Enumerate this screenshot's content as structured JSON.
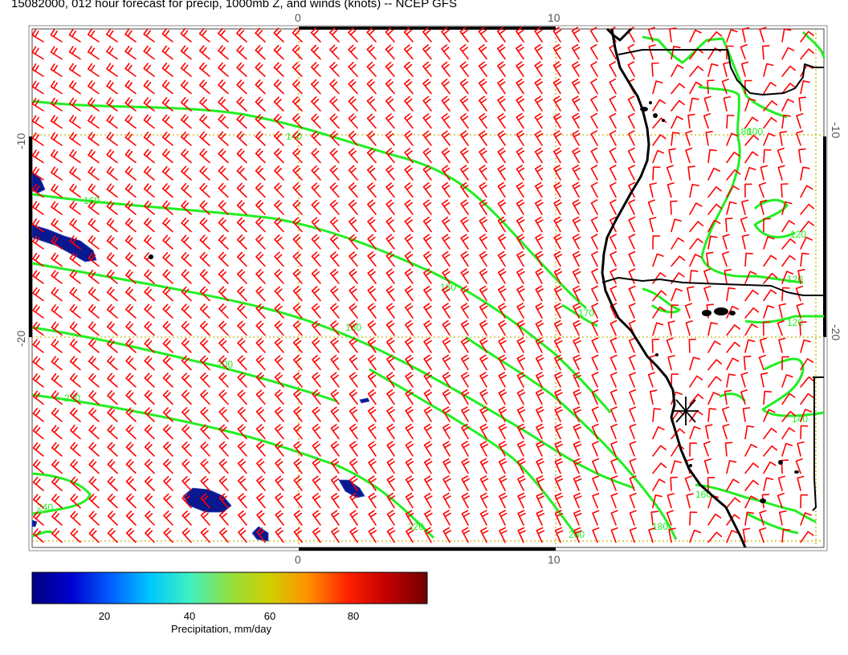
{
  "title": "15082000, 012 hour forecast for precip, 1000mb Z, and winds (knots) -- NCEP GFS",
  "axes": {
    "top_ticks": [
      "0",
      "10"
    ],
    "bottom_ticks": [
      "0",
      "10"
    ],
    "left_ticks": [
      "-10",
      "-20"
    ],
    "right_ticks": [
      "-10",
      "-20"
    ]
  },
  "contour_labels": [
    "140",
    "160",
    "160",
    "180",
    "200",
    "220",
    "240",
    "170",
    "180",
    "220",
    "200",
    "180",
    "160",
    "100",
    "120",
    "120",
    "120",
    "140"
  ],
  "colorbar": {
    "label": "Precipitation, mm/day",
    "ticks": [
      "20",
      "40",
      "60",
      "80"
    ],
    "stops": [
      "#00007f",
      "#0000d0",
      "#0060ff",
      "#00c8ff",
      "#40f0c0",
      "#90e040",
      "#d0d000",
      "#ff9000",
      "#ff2000",
      "#c00000",
      "#700000"
    ]
  },
  "colors": {
    "contour": "#22ee22",
    "wind_barb": "#ff0000",
    "coast": "#000000",
    "grid": "#c8b400",
    "precip": "#0a1890"
  },
  "marker_icon": "asterisk-marker-icon"
}
